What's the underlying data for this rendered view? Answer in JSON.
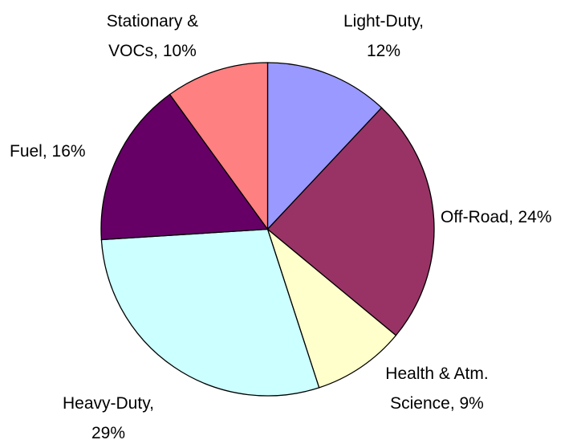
{
  "chart_data": {
    "type": "pie",
    "values": [
      12,
      24,
      9,
      29,
      16,
      10
    ],
    "value_labels": [
      "Light-Duty, 12%",
      "Off-Road, 24%",
      "Health & Atm. Science, 9%",
      "Heavy-Duty, 29%",
      "Fuel, 16%",
      "Stationary & VOCs, 10%"
    ],
    "colors": [
      "#9999ff",
      "#993366",
      "#ffffcc",
      "#ccffff",
      "#660066",
      "#ff8080"
    ]
  }
}
